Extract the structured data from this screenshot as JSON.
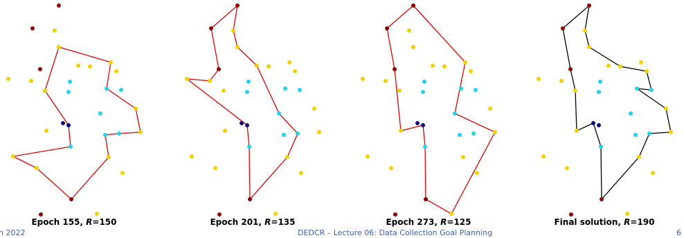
{
  "panels": [
    {
      "caption": {
        "prefix": "Epoch 155, ",
        "symbol": "R",
        "suffix": "=150"
      }
    },
    {
      "caption": {
        "prefix": "Epoch 201, ",
        "symbol": "R",
        "suffix": "=135"
      }
    },
    {
      "caption": {
        "prefix": "Epoch 273, ",
        "symbol": "R",
        "suffix": "=125"
      }
    },
    {
      "caption": {
        "prefix": "Final solution, ",
        "symbol": "R",
        "suffix": "=190"
      }
    }
  ],
  "footer": {
    "left": "h 2022",
    "center": "DEDCR – Lecture 06: Data Collection Goal Planning",
    "right": "6"
  }
}
